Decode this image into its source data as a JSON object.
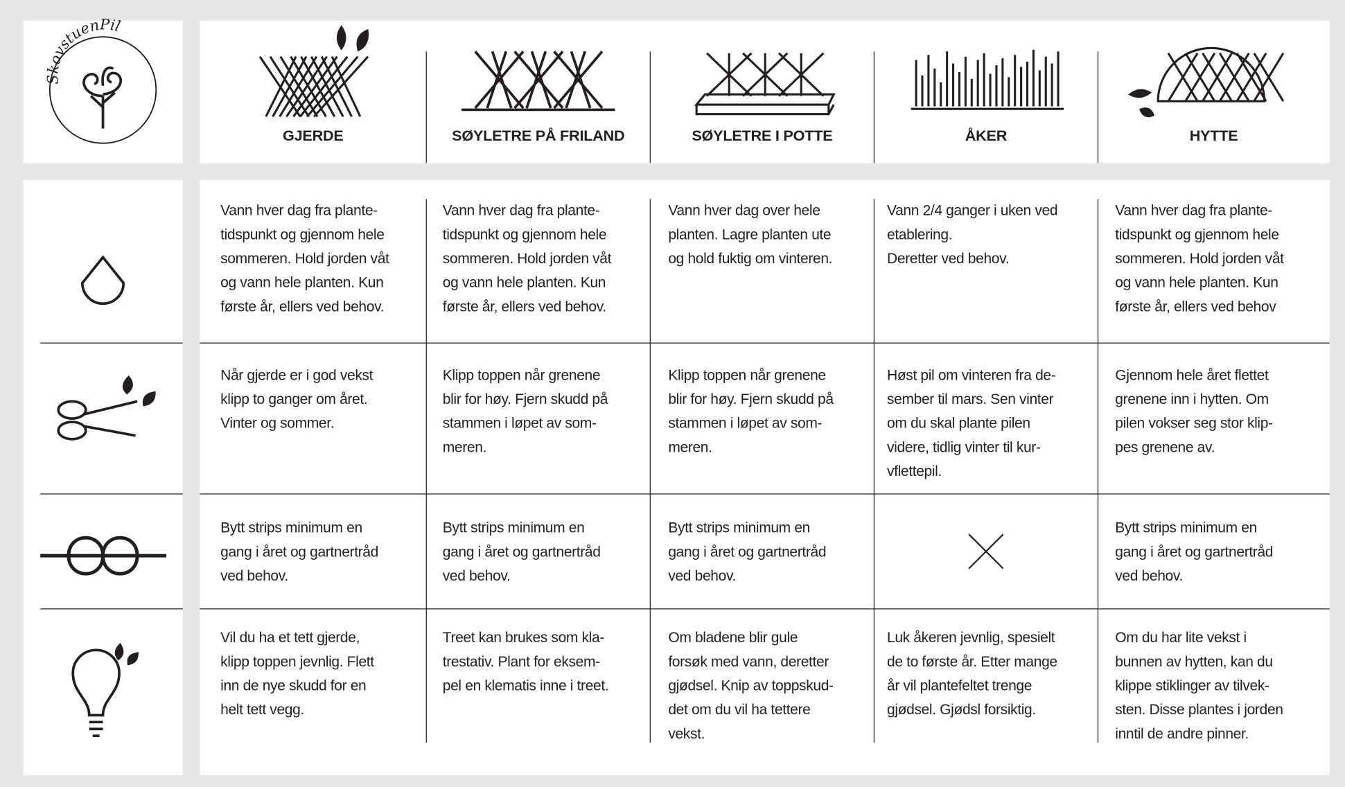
{
  "logo": {
    "text": "SkovstuenPil"
  },
  "header": {
    "columns": [
      "GJERDE",
      "SØYLETRE PÅ FRILAND",
      "SØYLETRE I POTTE",
      "ÅKER",
      "HYTTE"
    ]
  },
  "table": {
    "rows": [
      [
        "Vann hver dag fra plante-\ntidspunkt og gjennom hele\nsommeren. Hold jorden våt\nog vann hele planten. Kun\nførste år, ellers ved behov.",
        "Vann hver dag fra plante-\ntidspunkt og gjennom hele\nsommeren. Hold jorden våt\nog vann hele planten. Kun\nførste år, ellers ved behov.",
        "Vann hver dag over hele\nplanten. Lagre planten ute\nog hold fuktig om vinteren.",
        "Vann 2/4 ganger i uken ved\netablering.\nDeretter ved behov.",
        "Vann hver dag fra plante-\ntidspunkt og gjennom hele\nsommeren. Hold jorden våt\nog vann hele planten. Kun\nførste år, ellers ved behov"
      ],
      [
        "Når gjerde er i god vekst\nklipp to ganger om året.\nVinter og sommer.",
        "Klipp toppen når grenene\nblir for høy. Fjern skudd på\nstammen i løpet av som-\nmeren.",
        "Klipp toppen når grenene\nblir for høy. Fjern skudd på\nstammen i løpet av som-\nmeren.",
        "Høst pil om vinteren fra de-\nsember til mars. Sen vinter\nom du skal plante pilen\nvidere, tidlig vinter til kur-\nvflettepil.",
        "Gjennom hele året flettet\ngrenene inn i hytten. Om\npilen vokser seg stor klip-\npes grenene av."
      ],
      [
        "Bytt strips minimum en\ngang i året og gartnertråd\nved behov.",
        "Bytt strips minimum en\ngang i året og gartnertråd\nved behov.",
        "Bytt strips minimum en\ngang i året og gartnertråd\nved behov.",
        null,
        "Bytt strips minimum en\ngang i året og gartnertråd\nved behov."
      ],
      [
        "Vil du ha et tett gjerde,\nklipp toppen jevnlig. Flett\ninn de nye skudd for en\nhelt tett vegg.",
        "Treet kan brukes som kla-\ntrestativ. Plant for eksem-\npel en klematis inne i treet.",
        "Om bladene blir gule\nforsøk med vann, deretter\ngjødsel. Knip av toppskud-\ndet om du vil ha tettere\nvekst.",
        "Luk åkeren jevnlig, spesielt\nde to første år. Etter mange\når vil plantefeltet trenge\ngjødsel. Gjødsl forsiktig.",
        "Om du har lite vekst i\nbunnen av hytten, kan du\nklippe stiklinger av tilvek-\nsten. Disse plantes i jorden\ninntil de andre pinner."
      ]
    ]
  }
}
